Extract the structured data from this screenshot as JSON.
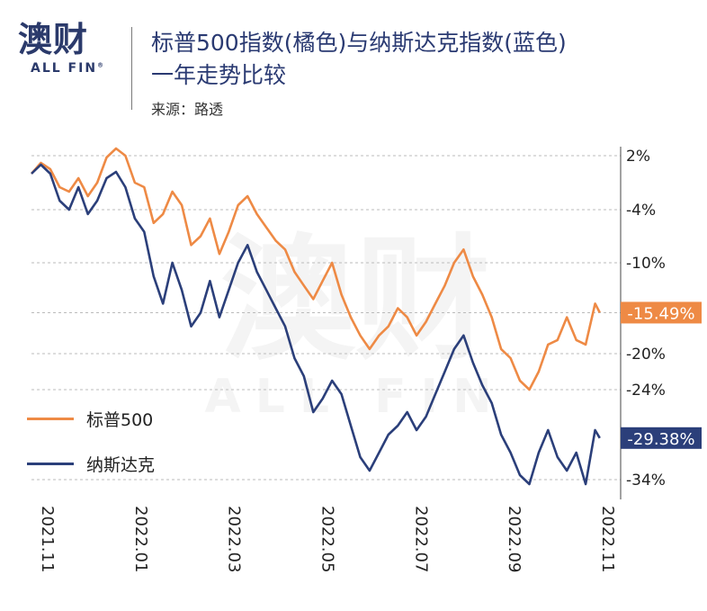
{
  "logo": {
    "cn": "澳财",
    "en": "ALL FIN",
    "reg": "®"
  },
  "title_line1": "标普500指数(橘色)与纳斯达克指数(蓝色)",
  "title_line2": "一年走势比较",
  "source": "来源：路透",
  "watermark": {
    "cn": "澳财",
    "en": "ALL FIN"
  },
  "colors": {
    "sp500": "#ee8a45",
    "nasdaq": "#2b3f7a",
    "grid": "#bbbbbb"
  },
  "chart_data": {
    "type": "line",
    "title": "标普500指数(橘色)与纳斯达克指数(蓝色)一年走势比较",
    "xlabel": "",
    "ylabel": "",
    "x_ticks": [
      "2021.11",
      "2022.01",
      "2022.03",
      "2022.05",
      "2022.07",
      "2022.09",
      "2022.11"
    ],
    "y_ticks": [
      "2%",
      "-4%",
      "-10%",
      "-20%",
      "-24%",
      "-34%"
    ],
    "y_tick_values": [
      2,
      -4,
      -10,
      -20,
      -24,
      -34
    ],
    "ylim": [
      -35.5,
      3
    ],
    "x_range": [
      0,
      12.2
    ],
    "grid": true,
    "legend_position": "bottom-left",
    "series": [
      {
        "name": "标普500",
        "color": "#ee8a45",
        "end_label": "-15.49%",
        "x": [
          0,
          0.2,
          0.4,
          0.6,
          0.8,
          1.0,
          1.2,
          1.4,
          1.6,
          1.8,
          2.0,
          2.2,
          2.4,
          2.6,
          2.8,
          3.0,
          3.2,
          3.4,
          3.6,
          3.8,
          4.0,
          4.2,
          4.4,
          4.6,
          4.8,
          5.0,
          5.2,
          5.4,
          5.6,
          5.8,
          6.0,
          6.2,
          6.4,
          6.6,
          6.8,
          7.0,
          7.2,
          7.4,
          7.6,
          7.8,
          8.0,
          8.2,
          8.4,
          8.6,
          8.8,
          9.0,
          9.2,
          9.4,
          9.6,
          9.8,
          10.0,
          10.2,
          10.4,
          10.6,
          10.8,
          11.0,
          11.2,
          11.4,
          11.6,
          11.8,
          12.0,
          12.1
        ],
        "values": [
          0.0,
          1.2,
          0.5,
          -1.5,
          -2.0,
          -0.5,
          -2.5,
          -1.0,
          1.8,
          2.8,
          2.0,
          -1.0,
          -1.5,
          -5.5,
          -4.5,
          -2.0,
          -3.5,
          -8.0,
          -7.0,
          -5.0,
          -9.0,
          -6.5,
          -3.5,
          -2.5,
          -4.5,
          -6.0,
          -7.5,
          -8.5,
          -11.0,
          -12.5,
          -14.0,
          -12.0,
          -10.0,
          -13.5,
          -16.0,
          -18.0,
          -19.5,
          -18.0,
          -17.0,
          -15.0,
          -16.0,
          -18.0,
          -16.5,
          -14.5,
          -12.5,
          -10.0,
          -8.5,
          -11.5,
          -13.5,
          -16.0,
          -19.5,
          -20.5,
          -23.0,
          -24.0,
          -22.0,
          -19.0,
          -18.5,
          -16.0,
          -18.5,
          -19.0,
          -14.5,
          -15.49
        ]
      },
      {
        "name": "纳斯达克",
        "color": "#2b3f7a",
        "end_label": "-29.38%",
        "x": [
          0,
          0.2,
          0.4,
          0.6,
          0.8,
          1.0,
          1.2,
          1.4,
          1.6,
          1.8,
          2.0,
          2.2,
          2.4,
          2.6,
          2.8,
          3.0,
          3.2,
          3.4,
          3.6,
          3.8,
          4.0,
          4.2,
          4.4,
          4.6,
          4.8,
          5.0,
          5.2,
          5.4,
          5.6,
          5.8,
          6.0,
          6.2,
          6.4,
          6.6,
          6.8,
          7.0,
          7.2,
          7.4,
          7.6,
          7.8,
          8.0,
          8.2,
          8.4,
          8.6,
          8.8,
          9.0,
          9.2,
          9.4,
          9.6,
          9.8,
          10.0,
          10.2,
          10.4,
          10.6,
          10.8,
          11.0,
          11.2,
          11.4,
          11.6,
          11.8,
          12.0,
          12.1
        ],
        "values": [
          0.0,
          1.0,
          0.0,
          -3.0,
          -4.0,
          -1.5,
          -4.5,
          -3.0,
          -0.5,
          0.2,
          -1.5,
          -5.0,
          -6.5,
          -11.5,
          -14.5,
          -10.0,
          -13.0,
          -17.0,
          -15.5,
          -12.0,
          -16.0,
          -13.0,
          -10.0,
          -8.0,
          -11.0,
          -13.0,
          -15.0,
          -17.0,
          -20.5,
          -22.5,
          -26.5,
          -25.0,
          -23.0,
          -24.5,
          -28.0,
          -31.5,
          -33.0,
          -31.0,
          -29.0,
          -28.0,
          -26.5,
          -28.5,
          -27.0,
          -24.5,
          -22.0,
          -19.5,
          -18.0,
          -21.0,
          -23.5,
          -25.5,
          -29.0,
          -31.0,
          -33.5,
          -34.5,
          -31.0,
          -28.5,
          -31.5,
          -33.0,
          -31.0,
          -34.5,
          -28.5,
          -29.38
        ]
      }
    ]
  }
}
